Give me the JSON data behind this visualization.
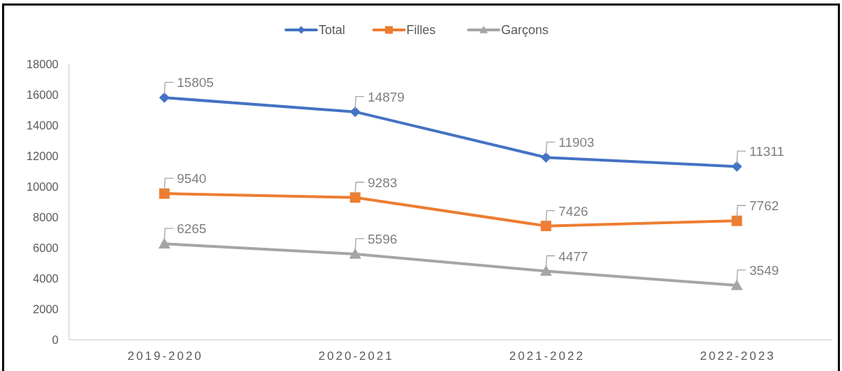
{
  "chart_data": {
    "type": "line",
    "categories": [
      "2019-2020",
      "2020-2021",
      "2021-2022",
      "2022-2023"
    ],
    "series": [
      {
        "name": "Total",
        "color": "#4472c4",
        "marker": "diamond",
        "values": [
          15805,
          14879,
          11903,
          11311
        ]
      },
      {
        "name": "Filles",
        "color": "#ed7d31",
        "marker": "square",
        "values": [
          9540,
          9283,
          7426,
          7762
        ]
      },
      {
        "name": "Garçons",
        "color": "#a5a5a5",
        "marker": "triangle",
        "values": [
          6265,
          5596,
          4477,
          3549
        ]
      }
    ],
    "ylim": [
      0,
      18000
    ],
    "yticks": [
      0,
      2000,
      4000,
      6000,
      8000,
      10000,
      12000,
      14000,
      16000,
      18000
    ],
    "grid": false,
    "legend": "top",
    "data_labels": true,
    "line_style": "solid"
  }
}
